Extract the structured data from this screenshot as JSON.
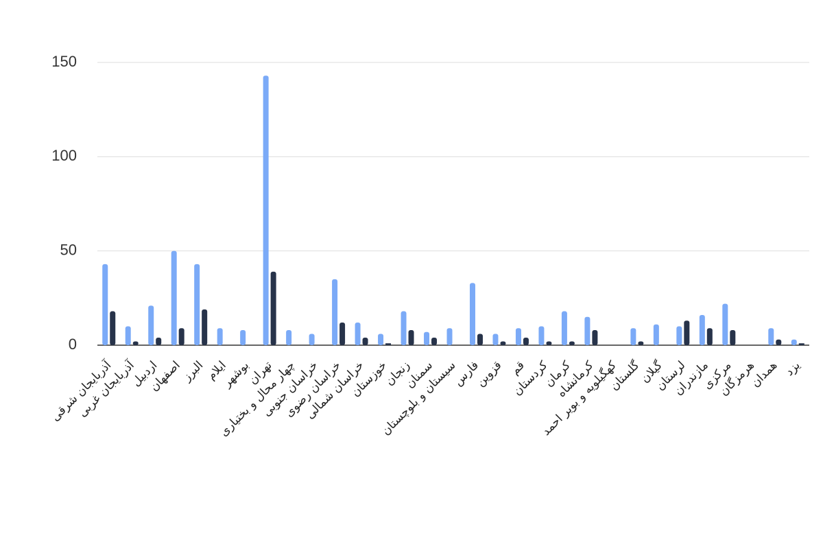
{
  "chart_data": {
    "type": "bar",
    "categories": [
      "آذربایجان شرقی",
      "آذربایجان غربی",
      "اردبیل",
      "اصفهان",
      "البرز",
      "ایلام",
      "بوشهر",
      "تهران",
      "چهار محال و بختیاری",
      "خراسان جنوبی",
      "خراسان رضوی",
      "خراسان شمالی",
      "خوزستان",
      "زنجان",
      "سمنان",
      "سیستان و بلوچستان",
      "فارس",
      "قزوین",
      "قم",
      "کردستان",
      "کرمان",
      "کرمانشاه",
      "کهگیلویه و بویر احمد",
      "گلستان",
      "گیلان",
      "لرستان",
      "مازندران",
      "مرکزی",
      "هرمزگان",
      "همدان",
      "یزد"
    ],
    "series": [
      {
        "color": "#7baaf7",
        "values": [
          43,
          10,
          21,
          50,
          43,
          9,
          8,
          143,
          8,
          6,
          35,
          12,
          6,
          18,
          7,
          9,
          33,
          6,
          9,
          10,
          18,
          15,
          0,
          9,
          11,
          10,
          16,
          22,
          0,
          9,
          3
        ]
      },
      {
        "color": "#27334a",
        "values": [
          18,
          2,
          4,
          9,
          19,
          0,
          0,
          39,
          0,
          0,
          12,
          4,
          1,
          8,
          4,
          0,
          6,
          2,
          4,
          2,
          2,
          8,
          0,
          2,
          0,
          13,
          9,
          8,
          0,
          3,
          1
        ]
      }
    ],
    "ylim": [
      0,
      150
    ],
    "yticks": [
      0,
      50,
      100,
      150
    ],
    "grid": true
  }
}
